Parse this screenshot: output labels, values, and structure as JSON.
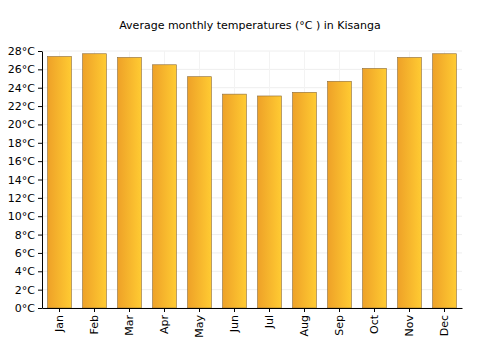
{
  "chart_data": {
    "type": "bar",
    "title": "Average monthly temperatures (°C ) in Kisanga",
    "categories": [
      "Jan",
      "Feb",
      "Mar",
      "Apr",
      "May",
      "Jun",
      "Jul",
      "Aug",
      "Sep",
      "Oct",
      "Nov",
      "Dec"
    ],
    "values": [
      27.4,
      27.7,
      27.3,
      26.5,
      25.2,
      23.3,
      23.1,
      23.5,
      24.7,
      26.1,
      27.3,
      27.7
    ],
    "color": "#fbaa2a",
    "ylim": [
      0,
      28
    ],
    "yticks": [
      {
        "value": 0,
        "label": "0°C"
      },
      {
        "value": 2,
        "label": "2°C"
      },
      {
        "value": 4,
        "label": "4°C"
      },
      {
        "value": 6,
        "label": "6°C"
      },
      {
        "value": 8,
        "label": "8°C"
      },
      {
        "value": 10,
        "label": "10°C"
      },
      {
        "value": 12,
        "label": "12°C"
      },
      {
        "value": 14,
        "label": "14°C"
      },
      {
        "value": 16,
        "label": "16°C"
      },
      {
        "value": 18,
        "label": "18°C"
      },
      {
        "value": 20,
        "label": "20°C"
      },
      {
        "value": 22,
        "label": "22°C"
      },
      {
        "value": 24,
        "label": "24°C"
      },
      {
        "value": 26,
        "label": "26°C"
      },
      {
        "value": 28,
        "label": "28°C"
      }
    ],
    "grid": true
  }
}
